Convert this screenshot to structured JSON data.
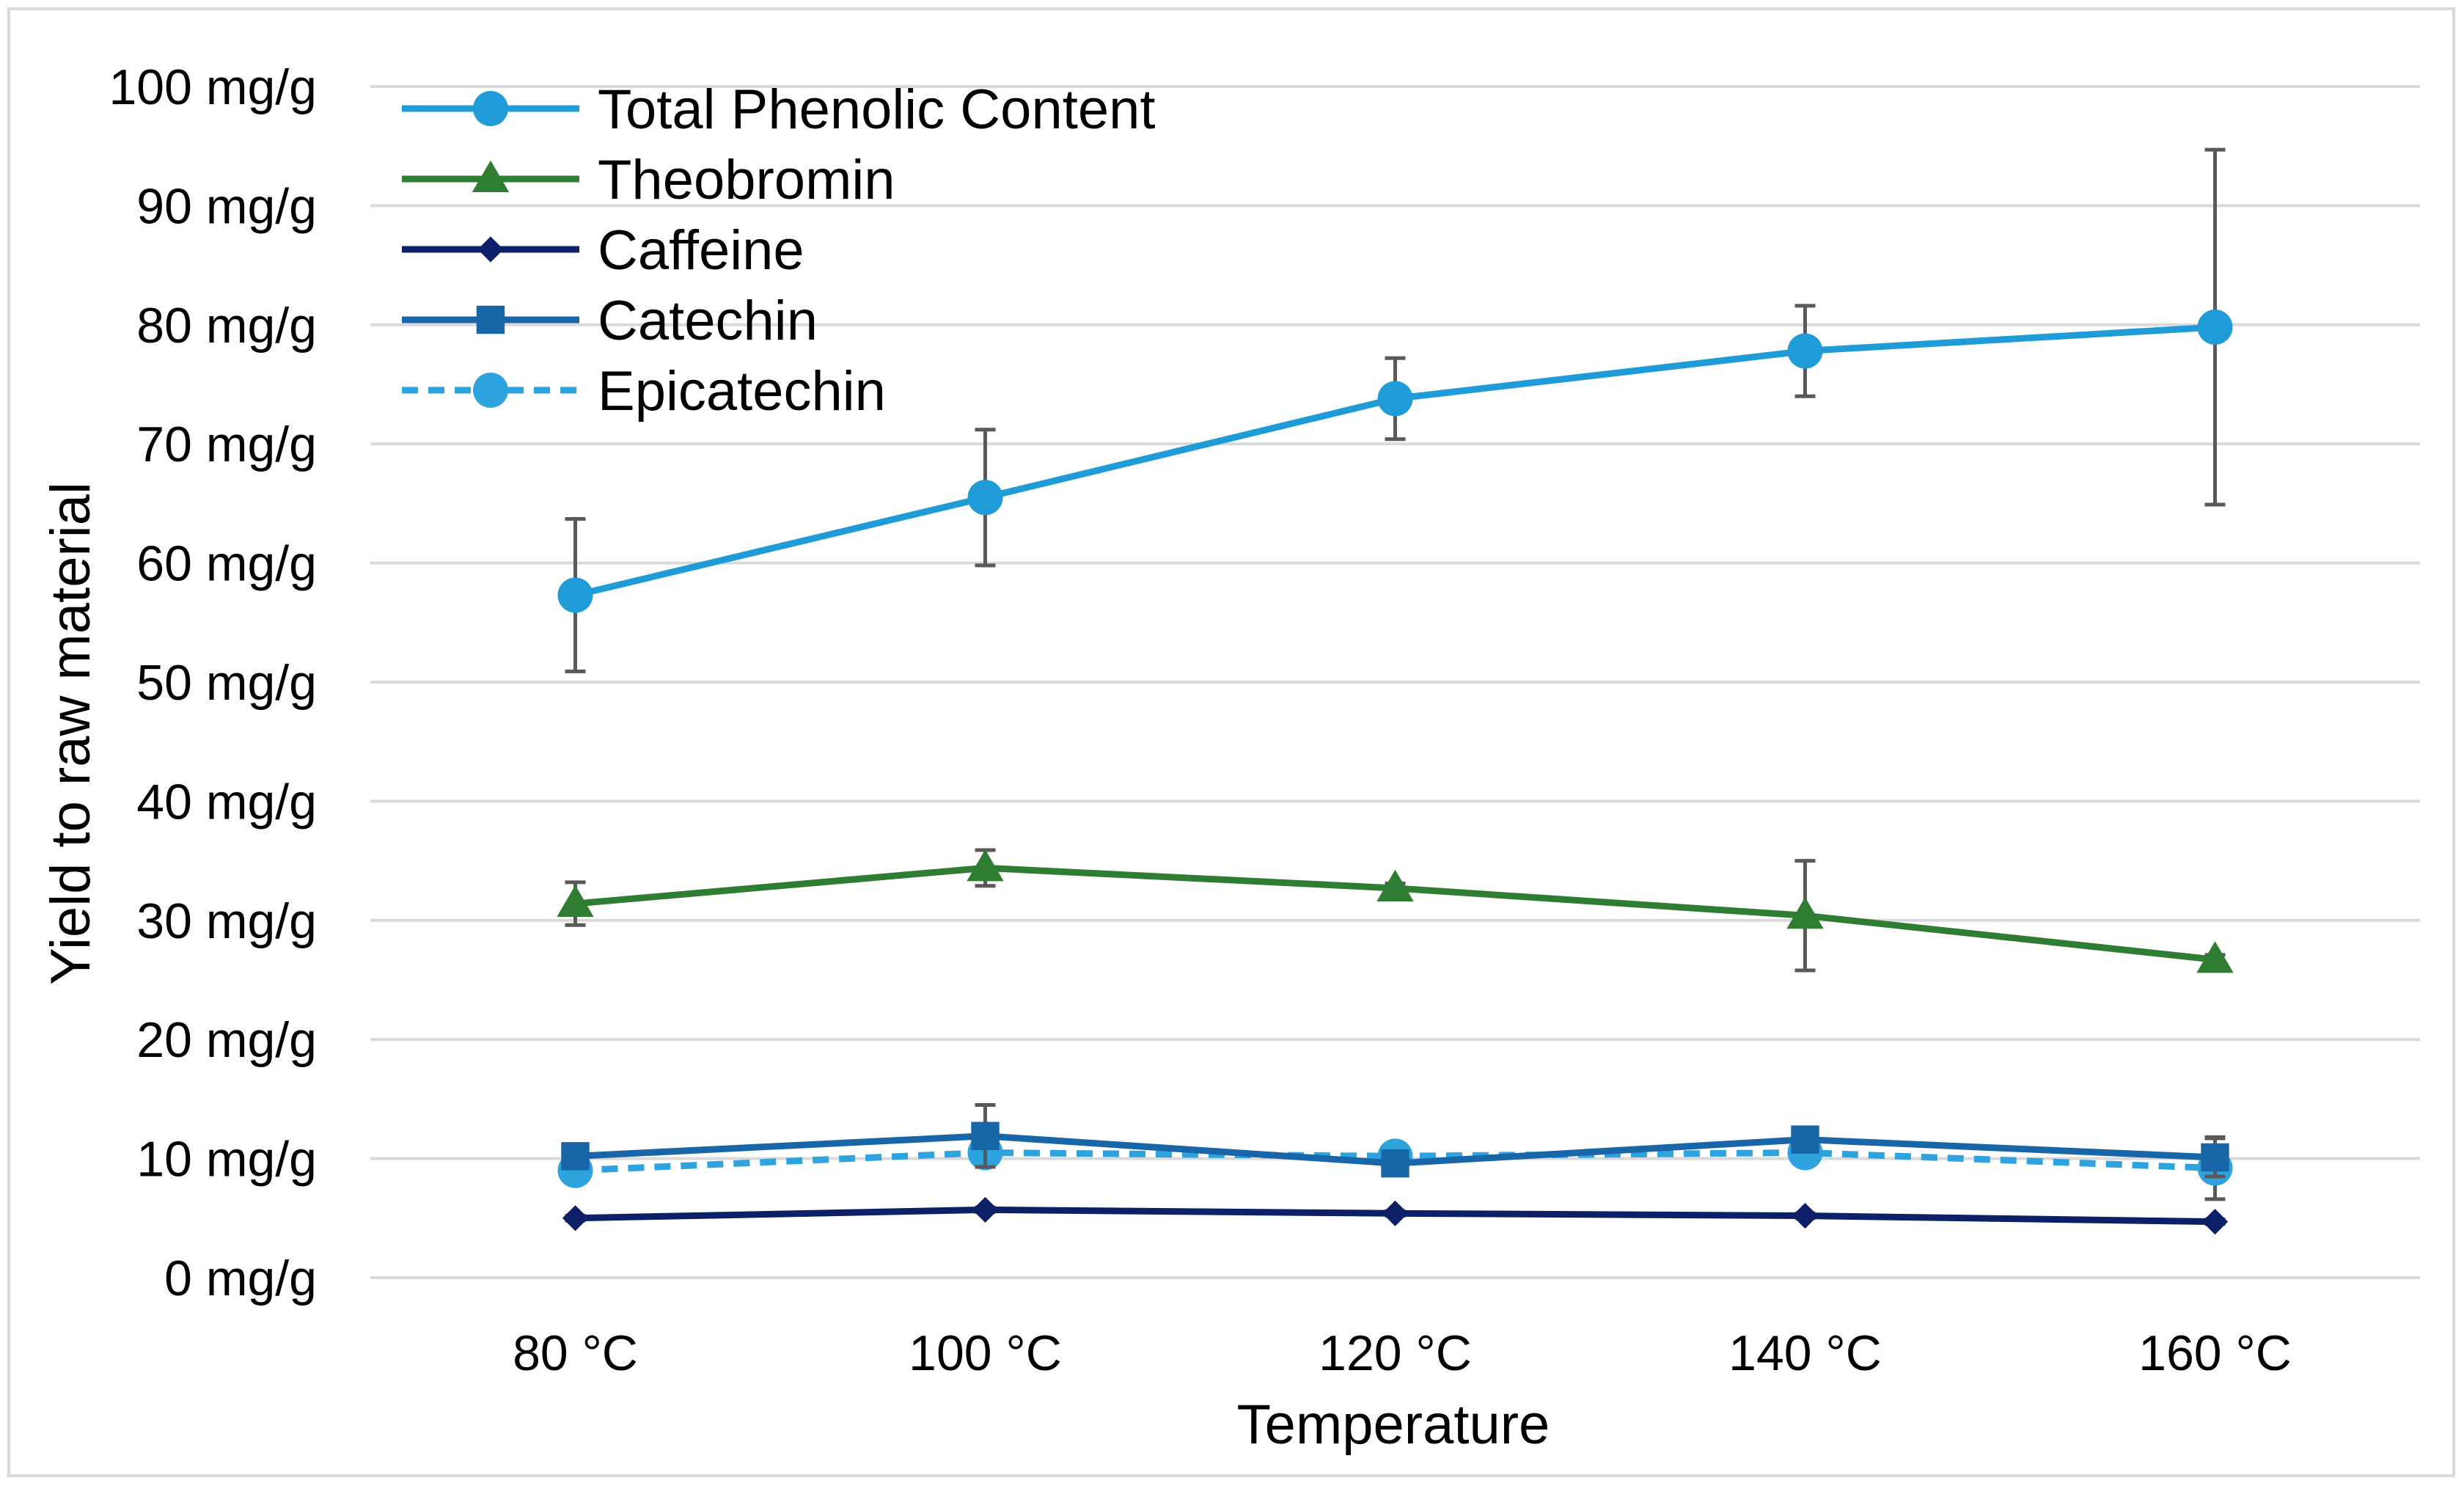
{
  "chart_data": {
    "type": "line",
    "title": "",
    "xlabel": "Temperature",
    "ylabel": "Yield to raw material",
    "categories": [
      "80 °C",
      "100 °C",
      "120 °C",
      "140 °C",
      "160 °C"
    ],
    "ylim": [
      0,
      100
    ],
    "y_ticks": [
      0,
      10,
      20,
      30,
      40,
      50,
      60,
      70,
      80,
      90,
      100
    ],
    "y_tick_labels": [
      "0 mg/g",
      "10 mg/g",
      "20 mg/g",
      "30 mg/g",
      "40 mg/g",
      "50 mg/g",
      "60 mg/g",
      "70 mg/g",
      "80 mg/g",
      "90 mg/g",
      "100 mg/g"
    ],
    "grid": true,
    "legend_position": "top-left",
    "series": [
      {
        "name": "Total Phenolic Content",
        "values": [
          57.3,
          65.5,
          73.8,
          77.8,
          79.8
        ],
        "error": [
          6.4,
          5.7,
          3.4,
          3.8,
          14.9
        ],
        "marker": "circle",
        "dash": "solid",
        "color": "#1f9bd7"
      },
      {
        "name": "Theobromin",
        "values": [
          31.4,
          34.4,
          32.7,
          30.4,
          26.7
        ],
        "error": [
          1.8,
          1.5,
          0.4,
          4.6,
          0.4
        ],
        "marker": "triangle",
        "dash": "solid",
        "color": "#2e7d32"
      },
      {
        "name": "Caffeine",
        "values": [
          5.0,
          5.7,
          5.4,
          5.2,
          4.7
        ],
        "error": [
          0.2,
          0.2,
          0.2,
          0.2,
          0.2
        ],
        "marker": "diamond",
        "dash": "solid",
        "color": "#0d1f66"
      },
      {
        "name": "Catechin",
        "values": [
          10.2,
          11.9,
          9.6,
          11.6,
          10.1
        ],
        "error": [
          0.5,
          2.6,
          0.6,
          0.5,
          1.6
        ],
        "marker": "square",
        "dash": "solid",
        "color": "#1866a8"
      },
      {
        "name": "Epicatechin",
        "values": [
          9.0,
          10.5,
          10.2,
          10.5,
          9.2
        ],
        "error": [
          0.5,
          0.8,
          0.6,
          0.7,
          2.6
        ],
        "marker": "circle",
        "dash": "dashed",
        "color": "#2fa3de"
      }
    ]
  }
}
